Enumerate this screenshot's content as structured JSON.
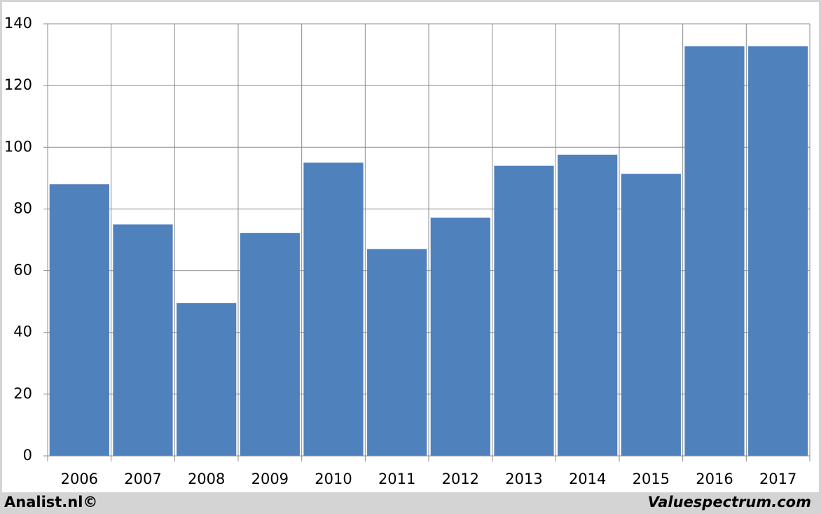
{
  "chart_data": {
    "type": "bar",
    "categories": [
      "2006",
      "2007",
      "2008",
      "2009",
      "2010",
      "2011",
      "2012",
      "2013",
      "2014",
      "2015",
      "2016",
      "2017"
    ],
    "values": [
      88,
      75,
      49.5,
      72.2,
      95,
      67,
      77.2,
      94,
      97.6,
      91.4,
      132.7,
      132.7
    ],
    "color": "#4f81bd",
    "ylim": [
      0,
      140
    ],
    "yticks": [
      0,
      20,
      40,
      60,
      80,
      100,
      120,
      140
    ],
    "grid": true
  },
  "footer": {
    "left": "Analist.nl©",
    "right": "Valuespectrum.com"
  }
}
